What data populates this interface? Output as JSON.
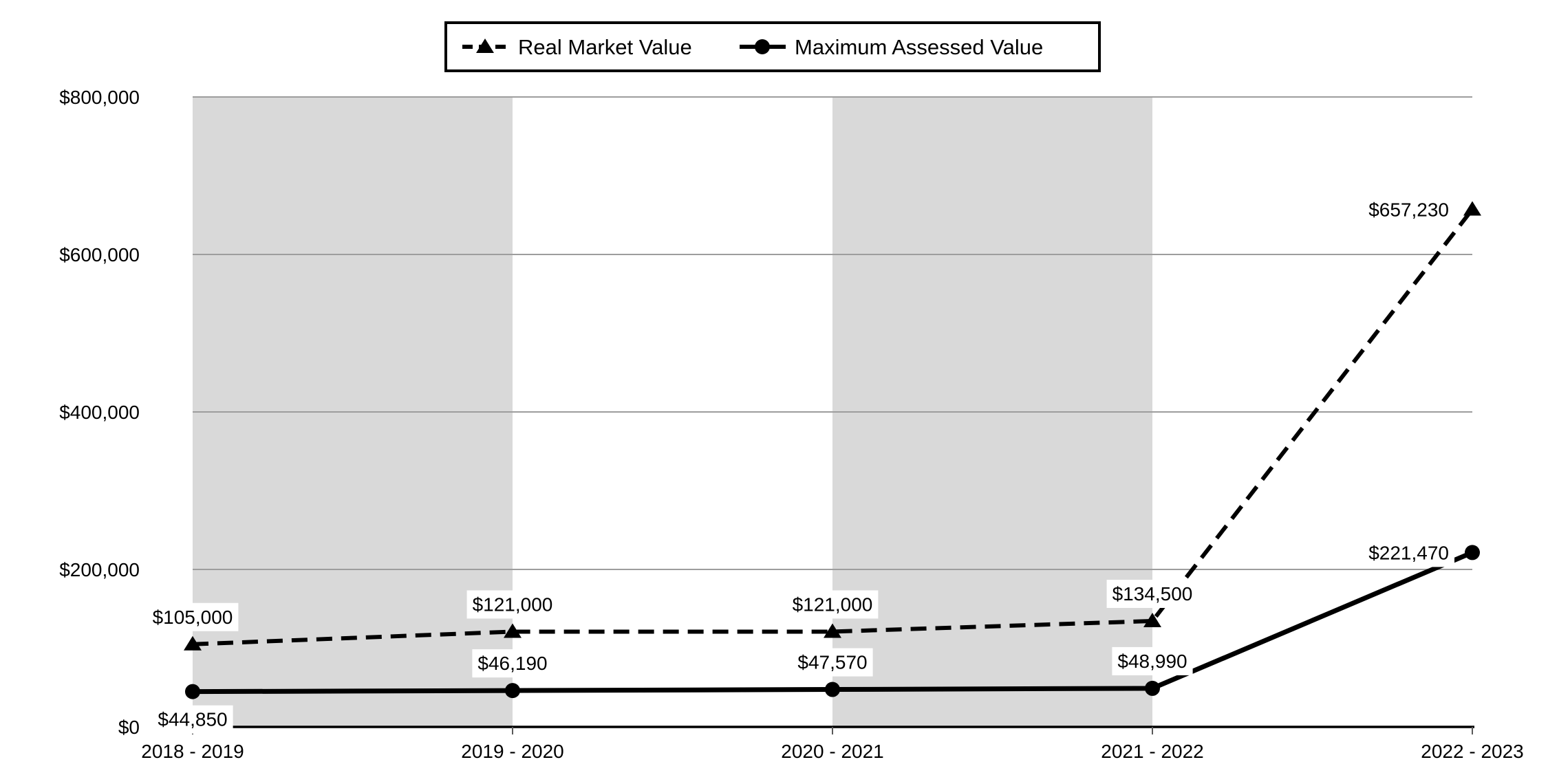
{
  "chart_data": {
    "type": "line",
    "title": "",
    "xlabel": "",
    "ylabel": "",
    "categories": [
      "2018 - 2019",
      "2019 - 2020",
      "2020 - 2021",
      "2021 - 2022",
      "2022 - 2023"
    ],
    "series": [
      {
        "name": "Real Market Value",
        "values": [
          105000,
          121000,
          121000,
          134500,
          657230
        ],
        "point_labels": [
          "$105,000",
          "$121,000",
          "$121,000",
          "$134,500",
          "$657,230"
        ],
        "label_placements": [
          "above",
          "above",
          "above",
          "above",
          "left"
        ],
        "line_style": "dashed",
        "marker": "triangle",
        "color": "#000000"
      },
      {
        "name": "Maximum Assessed Value",
        "values": [
          44850,
          46190,
          47570,
          48990,
          221470
        ],
        "point_labels": [
          "$44,850",
          "$46,190",
          "$47,570",
          "$48,990",
          "$221,470"
        ],
        "label_placements": [
          "below",
          "above",
          "above",
          "above",
          "left"
        ],
        "line_style": "solid",
        "marker": "circle",
        "color": "#000000"
      }
    ],
    "ylim": [
      0,
      800000
    ],
    "yticks": [
      0,
      200000,
      400000,
      600000,
      800000
    ],
    "ytick_labels": [
      "$0",
      "$200,000",
      "$400,000",
      "$600,000",
      "$800,000"
    ],
    "grid": true,
    "legend_position": "top-center",
    "shaded_column_spans": [
      [
        0,
        1
      ],
      [
        2,
        3
      ]
    ],
    "colors": {
      "band": "#d9d9d9",
      "gridline": "#9d9d9d",
      "axis": "#000000",
      "tick": "#595959",
      "series": "#000000",
      "text": "#000000",
      "background": "#ffffff",
      "label_background": "#ffffff",
      "legend_border": "#000000"
    }
  },
  "legend": {
    "items": [
      {
        "label": "Real Market Value"
      },
      {
        "label": "Maximum Assessed Value"
      }
    ]
  }
}
